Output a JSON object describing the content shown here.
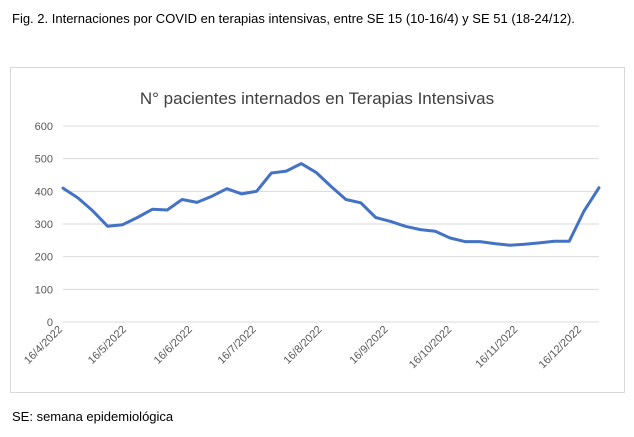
{
  "caption": "Fig. 2. Internaciones por COVID en terapias intensivas, entre SE 15 (10-16/4) y SE 51 (18-24/12).",
  "footnote": "SE: semana epidemiológica",
  "chart_data": {
    "type": "line",
    "title": "N° pacientes internados en Terapias Intensivas",
    "xlabel": "",
    "ylabel": "",
    "ylim": [
      0,
      600
    ],
    "yticks": [
      0,
      100,
      200,
      300,
      400,
      500,
      600
    ],
    "xticks": [
      "16/4/2022",
      "16/5/2022",
      "16/6/2022",
      "16/7/2022",
      "16/8/2022",
      "16/9/2022",
      "16/10/2022",
      "16/11/2022",
      "16/12/2022"
    ],
    "grid": true,
    "legend": "none",
    "color": "#4472c4",
    "series": [
      {
        "x": [
          "16/4/2022",
          "23/4/2022",
          "30/4/2022",
          "7/5/2022",
          "14/5/2022",
          "21/5/2022",
          "28/5/2022",
          "4/6/2022",
          "11/6/2022",
          "18/6/2022",
          "25/6/2022",
          "2/7/2022",
          "9/7/2022",
          "16/7/2022",
          "23/7/2022",
          "30/7/2022",
          "6/8/2022",
          "13/8/2022",
          "20/8/2022",
          "27/8/2022",
          "3/9/2022",
          "10/9/2022",
          "17/9/2022",
          "24/9/2022",
          "1/10/2022",
          "8/10/2022",
          "15/10/2022",
          "22/10/2022",
          "29/10/2022",
          "5/11/2022",
          "12/11/2022",
          "19/11/2022",
          "26/11/2022",
          "3/12/2022",
          "10/12/2022",
          "17/12/2022",
          "24/12/2022"
        ],
        "values": [
          410,
          380,
          340,
          293,
          298,
          320,
          345,
          343,
          375,
          366,
          385,
          408,
          392,
          400,
          456,
          462,
          485,
          458,
          415,
          375,
          365,
          320,
          308,
          293,
          283,
          278,
          257,
          246,
          246,
          240,
          235,
          238,
          242,
          247,
          247,
          340,
          411
        ]
      }
    ]
  }
}
